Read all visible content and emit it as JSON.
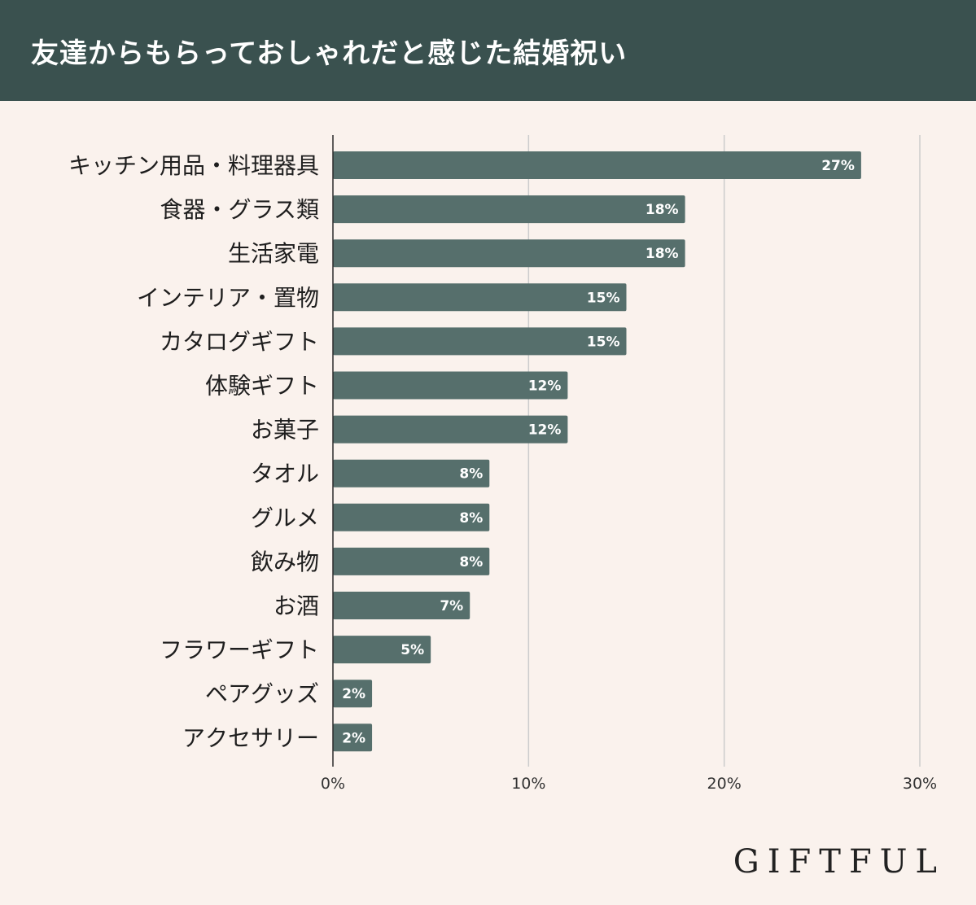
{
  "header": {
    "title": "友達からもらっておしゃれだと感じた結婚祝い"
  },
  "chart_data": {
    "type": "bar",
    "orientation": "horizontal",
    "title": "友達からもらっておしゃれだと感じた結婚祝い",
    "categories": [
      "キッチン用品・料理器具",
      "食器・グラス類",
      "生活家電",
      "インテリア・置物",
      "カタログギフト",
      "体験ギフト",
      "お菓子",
      "タオル",
      "グルメ",
      "飲み物",
      "お酒",
      "フラワーギフト",
      "ペアグッズ",
      "アクセサリー"
    ],
    "values": [
      27,
      18,
      18,
      15,
      15,
      12,
      12,
      8,
      8,
      8,
      7,
      5,
      2,
      2
    ],
    "value_labels": [
      "27%",
      "18%",
      "18%",
      "15%",
      "15%",
      "12%",
      "12%",
      "8%",
      "8%",
      "8%",
      "7%",
      "5%",
      "2%",
      "2%"
    ],
    "xlim": [
      0,
      30
    ],
    "xticks": [
      0,
      10,
      20,
      30
    ],
    "xtick_labels": [
      "0%",
      "10%",
      "20%",
      "30%"
    ],
    "grid": true,
    "bar_color": "#566f6c",
    "gridline_color": "#cccccc"
  },
  "brand": {
    "logo_text": "GIFTFUL"
  },
  "colors": {
    "header_background": "#3a514f",
    "page_background": "#faf2ed",
    "bar": "#566f6c"
  }
}
